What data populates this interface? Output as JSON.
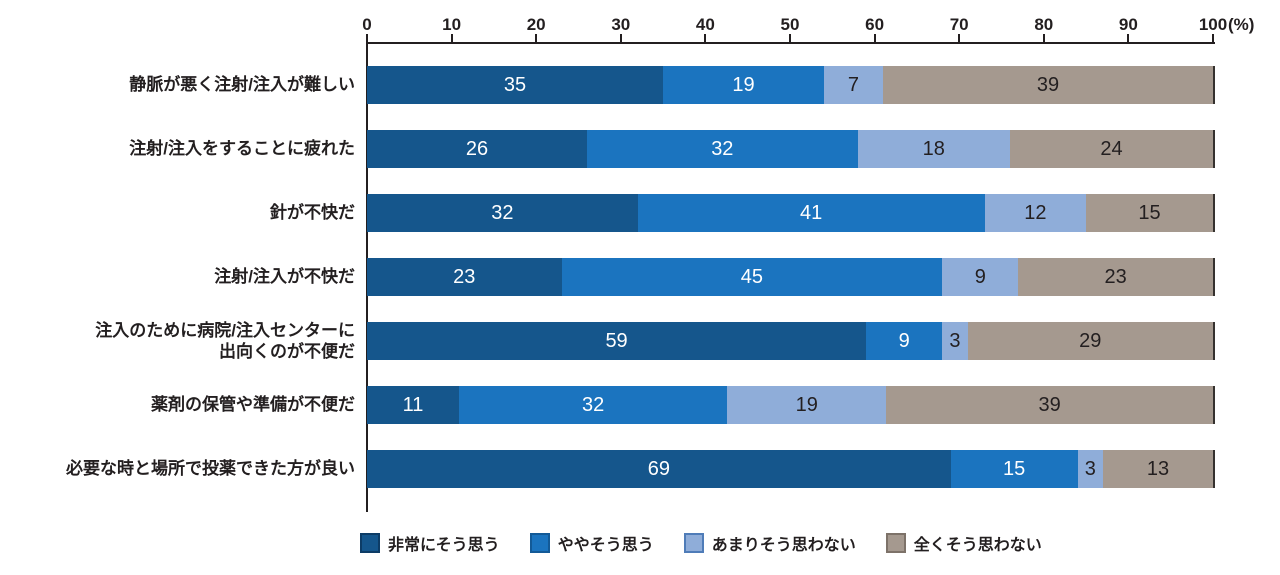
{
  "chart_data": {
    "type": "bar",
    "orientation": "horizontal-stacked",
    "title": "",
    "xlabel": "",
    "ylabel": "",
    "xlim": [
      0,
      100
    ],
    "grid": false,
    "axis": {
      "position": "top",
      "ticks": [
        0,
        10,
        20,
        30,
        40,
        50,
        60,
        70,
        80,
        90,
        100
      ],
      "unit": "(%)"
    },
    "categories": [
      [
        "静脈が悪く注射/注入が難しい"
      ],
      [
        "注射/注入をすることに疲れた"
      ],
      [
        "針が不快だ"
      ],
      [
        "注射/注入が不快だ"
      ],
      [
        "注入のために病院/注入センターに",
        "出向くのが不便だ"
      ],
      [
        "薬剤の保管や準備が不便だ"
      ],
      [
        "必要な時と場所で投薬できた方が良い"
      ]
    ],
    "series": [
      {
        "name": "非常にそう思う",
        "color": "#15568c",
        "border_color": "#0d3c66",
        "label_color": "#ffffff",
        "values": [
          35,
          26,
          32,
          23,
          59,
          11,
          69
        ]
      },
      {
        "name": "ややそう思う",
        "color": "#1b74bf",
        "border_color": "#135a97",
        "label_color": "#ffffff",
        "values": [
          19,
          32,
          41,
          45,
          9,
          32,
          15
        ]
      },
      {
        "name": "あまりそう思わない",
        "color": "#8fadd9",
        "border_color": "#4f7cb8",
        "label_color": "#231f20",
        "values": [
          7,
          18,
          12,
          9,
          3,
          19,
          3
        ]
      },
      {
        "name": "全くそう思わない",
        "color": "#a5998f",
        "border_color": "#7d7269",
        "label_color": "#231f20",
        "values": [
          39,
          24,
          15,
          23,
          29,
          39,
          13
        ]
      }
    ],
    "legend_position": "bottom",
    "text_color": "#231f20"
  }
}
